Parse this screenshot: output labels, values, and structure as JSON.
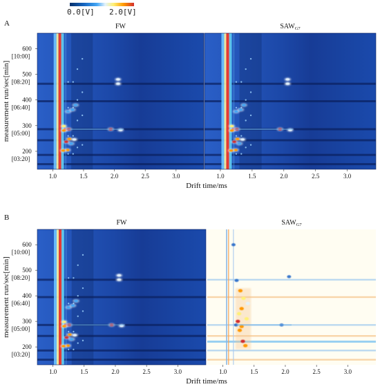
{
  "chart_data": {
    "type": "heatmap",
    "colorbar": {
      "min_label": "0.0[V]",
      "max_label": "2.0[V]",
      "min": 0.0,
      "max": 2.0,
      "colors": [
        "#08306b",
        "#1565c0",
        "#42a5f5",
        "#e3f2fd",
        "#fff176",
        "#ff9800",
        "#d32f2f"
      ]
    },
    "x_axis": {
      "label": "Drift time/ms",
      "range": [
        0.75,
        3.45
      ],
      "ticks": [
        "1.0",
        "1.5",
        "2.0",
        "2.5",
        "3.0"
      ],
      "tick_values": [
        1.0,
        1.5,
        2.0,
        2.5,
        3.0
      ]
    },
    "y_axis": {
      "label": "measurement run/sec[min]",
      "range": [
        130,
        660
      ],
      "ticks": [
        {
          "value": 600,
          "run": "600",
          "time": "[10:00]"
        },
        {
          "value": 500,
          "run": "500",
          "time": "[08:20]"
        },
        {
          "value": 400,
          "run": "400",
          "time": "[06:40]"
        },
        {
          "value": 300,
          "run": "300",
          "time": "[05:00]"
        },
        {
          "value": 200,
          "run": "200",
          "time": "[03:20]"
        }
      ]
    },
    "panels": [
      {
        "label": "A",
        "plots": [
          {
            "title": "FW",
            "subscript": "",
            "mode": "intensity"
          },
          {
            "title": "SAW",
            "subscript": "G7",
            "mode": "intensity"
          }
        ]
      },
      {
        "label": "B",
        "plots": [
          {
            "title": "FW",
            "subscript": "",
            "mode": "intensity"
          },
          {
            "title": "SAW",
            "subscript": "G7",
            "mode": "difference"
          }
        ]
      }
    ],
    "signal_spots": [
      {
        "drift": 1.21,
        "run": 285,
        "v": 1.9
      },
      {
        "drift": 1.26,
        "run": 286,
        "v": 2.0
      },
      {
        "drift": 1.18,
        "run": 281,
        "v": 1.7
      },
      {
        "drift": 1.27,
        "run": 248,
        "v": 1.6
      },
      {
        "drift": 1.22,
        "run": 237,
        "v": 1.9
      },
      {
        "drift": 1.24,
        "run": 205,
        "v": 1.8
      },
      {
        "drift": 1.17,
        "run": 203,
        "v": 1.6
      },
      {
        "drift": 1.94,
        "run": 286,
        "v": 1.9
      },
      {
        "drift": 2.06,
        "run": 480,
        "v": 1.0
      },
      {
        "drift": 2.06,
        "run": 463,
        "v": 1.0
      },
      {
        "drift": 2.1,
        "run": 283,
        "v": 0.9
      },
      {
        "drift": 1.25,
        "run": 355,
        "v": 0.8
      },
      {
        "drift": 1.32,
        "run": 362,
        "v": 0.6
      },
      {
        "drift": 1.35,
        "run": 246,
        "v": 0.9
      },
      {
        "drift": 1.3,
        "run": 230,
        "v": 0.8
      },
      {
        "drift": 1.37,
        "run": 380,
        "v": 0.6
      },
      {
        "drift": 1.18,
        "run": 298,
        "v": 1.2
      }
    ],
    "horizontal_bands": [
      {
        "run": 463,
        "type": "dark"
      },
      {
        "run": 395,
        "type": "dark"
      },
      {
        "run": 286,
        "type": "dark"
      },
      {
        "run": 243,
        "type": "dark"
      },
      {
        "run": 186,
        "type": "dark"
      },
      {
        "run": 150,
        "type": "dark"
      }
    ],
    "difference_spots": [
      {
        "drift": 1.28,
        "run": 420,
        "v": 1.8
      },
      {
        "drift": 1.3,
        "run": 350,
        "v": 1.5
      },
      {
        "drift": 1.26,
        "run": 330,
        "v": 1.3
      },
      {
        "drift": 1.24,
        "run": 300,
        "v": 1.9
      },
      {
        "drift": 1.3,
        "run": 280,
        "v": 1.6
      },
      {
        "drift": 1.27,
        "run": 265,
        "v": 1.7
      },
      {
        "drift": 1.32,
        "run": 222,
        "v": 1.9
      },
      {
        "drift": 1.36,
        "run": 205,
        "v": 1.6
      },
      {
        "drift": 1.33,
        "run": 390,
        "v": 1.4
      },
      {
        "drift": 1.4,
        "run": 370,
        "v": 1.0
      },
      {
        "drift": 1.38,
        "run": 310,
        "v": 1.2
      }
    ],
    "difference_blue_spots": [
      {
        "drift": 1.21,
        "run": 286,
        "v": -1.6
      },
      {
        "drift": 1.94,
        "run": 286,
        "v": -0.9
      },
      {
        "drift": 2.06,
        "run": 475,
        "v": -1.2
      },
      {
        "drift": 1.17,
        "run": 600,
        "v": -1.0
      },
      {
        "drift": 1.22,
        "run": 460,
        "v": -0.8
      }
    ]
  }
}
